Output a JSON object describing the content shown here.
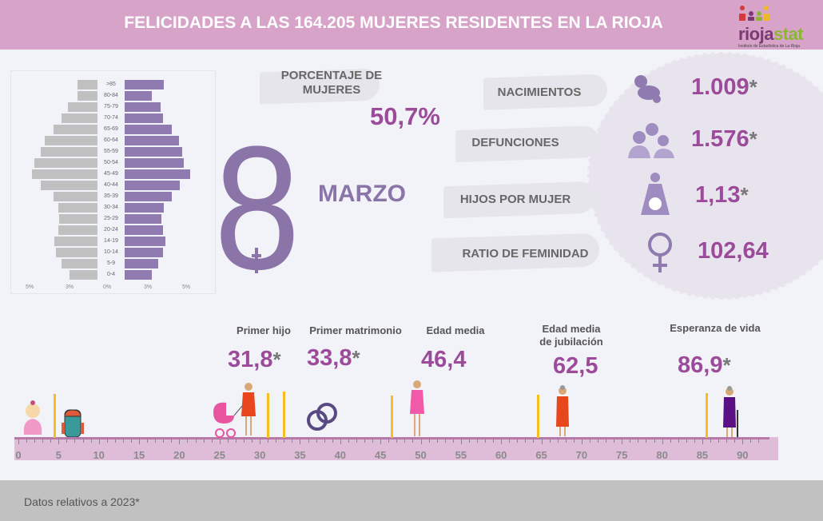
{
  "header": {
    "title": "FELICIDADES A LAS 164.205 MUJERES RESIDENTES EN LA RIOJA",
    "logo_text": "riojastat",
    "logo_subtitle": "Instituto de Estadística de La Rioja"
  },
  "colors": {
    "header": "#d7a3c9",
    "women": "#8f7bb0",
    "men": "#c0c0c0",
    "value": "#9c4b9b",
    "marker": "#f5bd1f",
    "ruler": "#dfbcd8"
  },
  "chart_data": {
    "type": "bar",
    "orientation": "horizontal-pyramid",
    "categories": [
      ">85",
      "80-84",
      "75-79",
      "70-74",
      "65-69",
      "60-64",
      "55-59",
      "50-54",
      "45-49",
      "40-44",
      "35-39",
      "30-34",
      "25-29",
      "20-24",
      "14-19",
      "10-14",
      "5-9",
      "0-4"
    ],
    "series": [
      {
        "side": "left",
        "color": "#c0c0c0",
        "values": [
          1.6,
          1.6,
          2.4,
          2.9,
          3.6,
          4.3,
          4.6,
          5.1,
          5.3,
          4.6,
          3.6,
          3.2,
          3.1,
          3.2,
          3.5,
          3.4,
          2.9,
          2.3
        ]
      },
      {
        "side": "right",
        "color": "#8f7bb0",
        "values": [
          3.2,
          2.2,
          2.9,
          3.1,
          3.8,
          4.4,
          4.7,
          4.8,
          5.3,
          4.5,
          3.8,
          3.2,
          3.0,
          3.1,
          3.3,
          3.1,
          2.7,
          2.2
        ]
      }
    ],
    "x_tick_labels": [
      "5%",
      "3%",
      "0%",
      "3%",
      "5%"
    ],
    "grid": false
  },
  "stats": {
    "women_pct_label": "PORCENTAJE DE MUJERES",
    "women_pct_value": "50,7%",
    "day": "8",
    "month": "MARZO",
    "items": [
      {
        "label": "NACIMIENTOS",
        "value": "1.009",
        "mark": "*",
        "icon": "baby-crawling-icon"
      },
      {
        "label": "DEFUNCIONES",
        "value": "1.576",
        "mark": "*",
        "icon": "people-group-icon"
      },
      {
        "label": "HIJOS POR MUJER",
        "value": "1,13",
        "mark": "*",
        "icon": "pregnant-woman-icon"
      },
      {
        "label": "RATIO DE FEMINIDAD",
        "value": "102,64",
        "mark": "",
        "icon": "female-symbol-icon"
      }
    ]
  },
  "timeline": {
    "ticks": [
      "0",
      "5",
      "10",
      "15",
      "20",
      "25",
      "30",
      "35",
      "40",
      "45",
      "50",
      "55",
      "60",
      "65",
      "70",
      "75",
      "80",
      "85",
      "90"
    ],
    "milestones": [
      {
        "label": "Primer hijo",
        "value": "31,8",
        "mark": "*"
      },
      {
        "label": "Primer matrimonio",
        "value": "33,8",
        "mark": "*"
      },
      {
        "label": "Edad media",
        "value": "46,4",
        "mark": ""
      },
      {
        "label": "Edad media de jubilación",
        "value": "62,5",
        "mark": ""
      },
      {
        "label": "Esperanza de vida",
        "value": "86,9",
        "mark": "*"
      }
    ],
    "marker_ages": [
      4.5,
      31,
      33,
      46.4,
      64.5,
      85.5
    ]
  },
  "footer": {
    "note": "Datos relativos a 2023*"
  }
}
